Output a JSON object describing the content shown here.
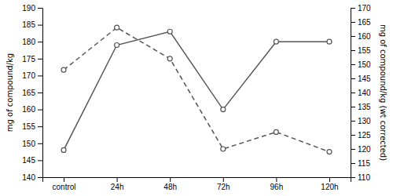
{
  "chart_data": {
    "type": "line",
    "categories": [
      "control",
      "24h",
      "48h",
      "72h",
      "96h",
      "120h"
    ],
    "series": [
      {
        "color": "#555555",
        "line_style": "solid",
        "marker": "circle",
        "values": [
          148,
          179,
          183,
          160,
          180,
          180
        ]
      },
      {
        "color": "#555555",
        "line_style": "dashed",
        "marker": "circle",
        "axis": "y2",
        "values": [
          148,
          163,
          152,
          120,
          126,
          119
        ]
      }
    ],
    "ylim": [
      140,
      190
    ],
    "yticks": [
      140,
      145,
      150,
      155,
      160,
      165,
      170,
      175,
      180,
      185,
      190
    ],
    "y2lim": [
      110,
      170
    ],
    "y2ticks": [
      110,
      115,
      120,
      125,
      130,
      135,
      140,
      145,
      150,
      155,
      160,
      165,
      170
    ],
    "y_label": "mg of compound/kg",
    "y2_label": "mg of compound/kg (wt corrected)"
  }
}
